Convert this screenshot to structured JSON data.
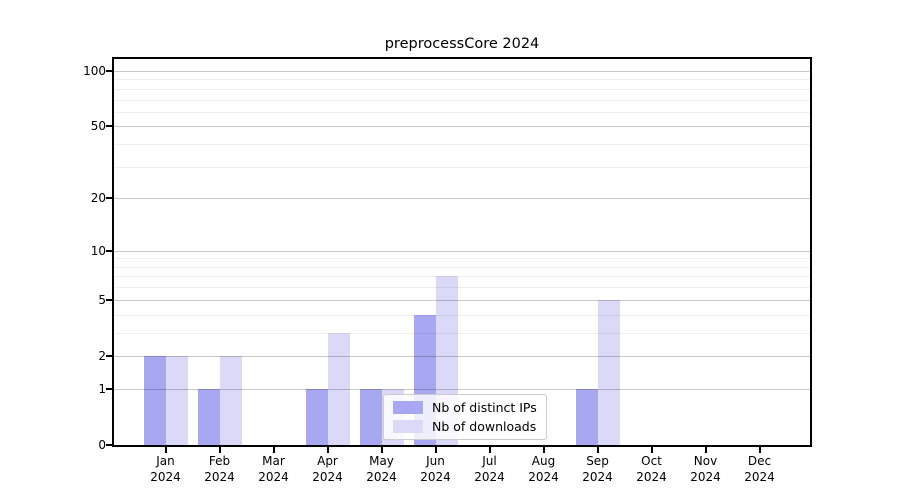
{
  "chart_data": {
    "type": "bar",
    "title": "preprocessCore 2024",
    "categories": [
      "Jan 2024",
      "Feb 2024",
      "Mar 2024",
      "Apr 2024",
      "May 2024",
      "Jun 2024",
      "Jul 2024",
      "Aug 2024",
      "Sep 2024",
      "Oct 2024",
      "Nov 2024",
      "Dec 2024"
    ],
    "series": [
      {
        "name": "Nb of distinct IPs",
        "color": "#a8a8f2",
        "values": [
          2,
          1,
          0,
          1,
          1,
          4,
          0,
          0,
          1,
          0,
          0,
          0
        ]
      },
      {
        "name": "Nb of downloads",
        "color": "#dadaf8",
        "values": [
          2,
          2,
          0,
          3,
          1,
          7,
          0,
          0,
          5,
          0,
          0,
          0
        ]
      }
    ],
    "yscale": "log10(1+x)",
    "ylim": [
      0,
      117
    ],
    "yticks": [
      0,
      1,
      2,
      5,
      10,
      20,
      50,
      100
    ],
    "ytick_labels": [
      "0",
      "1",
      "2",
      "5",
      "10",
      "20",
      "50",
      "100"
    ],
    "minor_gridlines": [
      3,
      4,
      6,
      7,
      8,
      9,
      30,
      40,
      60,
      70,
      80,
      90
    ],
    "grid": true,
    "legend_position": "bottom-center",
    "axis_color": "#000000",
    "major_grid_color": "#c9c9c9",
    "minor_grid_color": "#eeeeee"
  }
}
